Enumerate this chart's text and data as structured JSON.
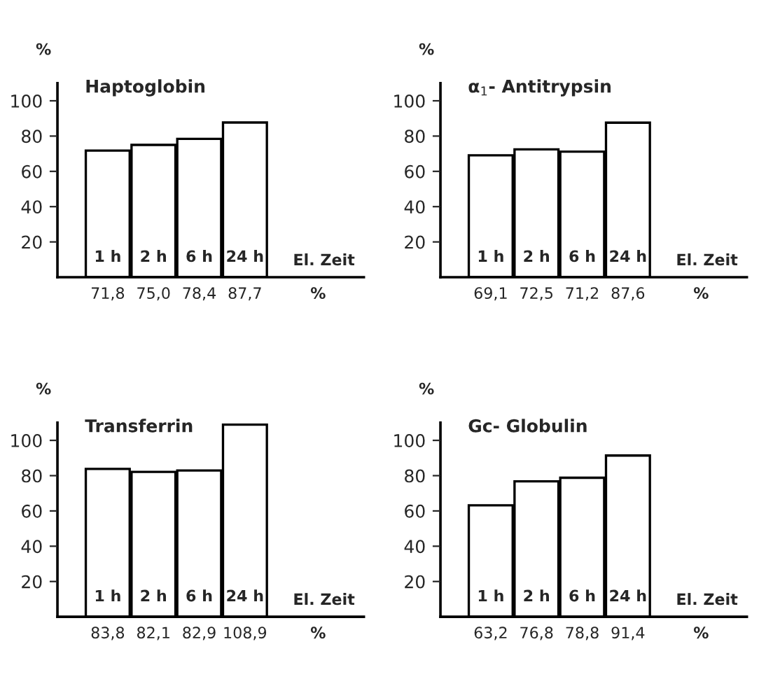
{
  "chart_data": [
    {
      "type": "bar",
      "title": "Haptoglobin",
      "ylabel": "%",
      "xlabel": "El. Zeit",
      "categories": [
        "1 h",
        "2 h",
        "6 h",
        "24 h"
      ],
      "values": [
        71.8,
        75.0,
        78.4,
        87.7
      ],
      "value_labels": [
        "71,8",
        "75,0",
        "78,4",
        "87,7"
      ],
      "color": "#ffffff",
      "ylim": [
        0,
        110
      ],
      "yticks": [
        20,
        40,
        60,
        80,
        100
      ],
      "annotations": [
        "%"
      ]
    },
    {
      "type": "bar",
      "title": "α$_{1}$- Antitrypsin",
      "ylabel": "%",
      "xlabel": "El. Zeit",
      "categories": [
        "1 h",
        "2 h",
        "6 h",
        "24 h"
      ],
      "values": [
        69.1,
        72.5,
        71.2,
        87.6
      ],
      "value_labels": [
        "69,1",
        "72,5",
        "71,2",
        "87,6"
      ],
      "color": "#ffffff",
      "ylim": [
        0,
        110
      ],
      "yticks": [
        20,
        40,
        60,
        80,
        100
      ],
      "annotations": [
        "%"
      ]
    },
    {
      "type": "bar",
      "title": "Transferrin",
      "ylabel": "%",
      "xlabel": "El. Zeit",
      "categories": [
        "1 h",
        "2 h",
        "6 h",
        "24 h"
      ],
      "values": [
        83.8,
        82.1,
        82.9,
        108.9
      ],
      "value_labels": [
        "83,8",
        "82,1",
        "82,9",
        "108,9"
      ],
      "color": "#ffffff",
      "ylim": [
        0,
        110
      ],
      "yticks": [
        20,
        40,
        60,
        80,
        100
      ],
      "annotations": [
        "%"
      ]
    },
    {
      "type": "bar",
      "title": "Gc- Globulin",
      "ylabel": "%",
      "xlabel": "El. Zeit",
      "categories": [
        "1 h",
        "2 h",
        "6 h",
        "24 h"
      ],
      "values": [
        63.2,
        76.8,
        78.8,
        91.4
      ],
      "value_labels": [
        "63,2",
        "76,8",
        "78,8",
        "91,4"
      ],
      "color": "#ffffff",
      "ylim": [
        0,
        110
      ],
      "yticks": [
        20,
        40,
        60,
        80,
        100
      ],
      "annotations": [
        "%"
      ]
    }
  ]
}
